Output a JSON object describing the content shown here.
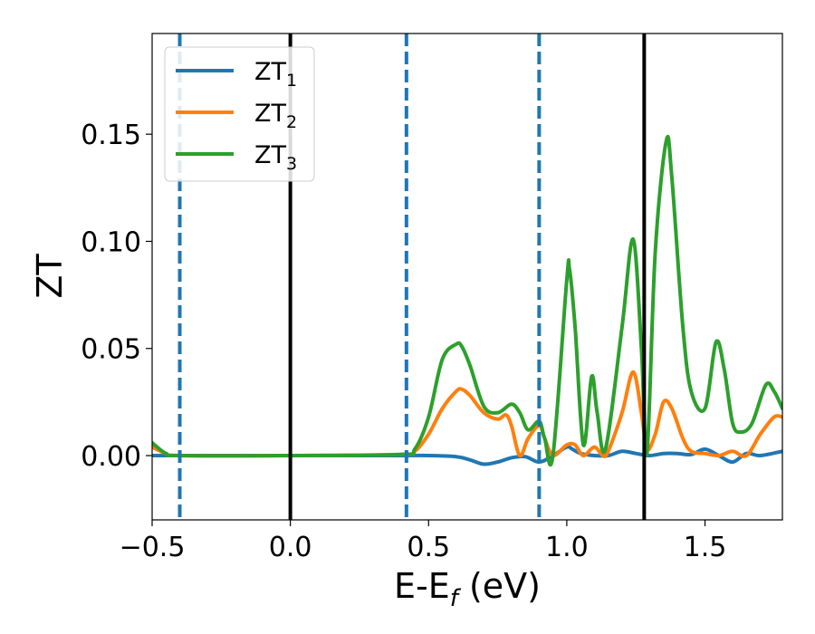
{
  "chart_data": {
    "type": "line",
    "xlabel": "E-E$_f$ (eV)",
    "xlabel_parts": {
      "main": "E-E",
      "sub": "f",
      "tail": " (eV)"
    },
    "ylabel": "ZT",
    "xlim": [
      -0.5,
      1.78
    ],
    "ylim": [
      -0.03,
      0.197
    ],
    "xticks": [
      -0.5,
      0.0,
      0.5,
      1.0,
      1.5
    ],
    "xtick_labels": [
      "−0.5",
      "0.0",
      "0.5",
      "1.0",
      "1.5"
    ],
    "yticks": [
      0.0,
      0.05,
      0.1,
      0.15
    ],
    "ytick_labels": [
      "0.00",
      "0.05",
      "0.10",
      "0.15"
    ],
    "grid": false,
    "legend_placement": "top-left",
    "vlines": [
      {
        "x": -0.4,
        "style": "dashed",
        "color": "#1f77b4"
      },
      {
        "x": 0.0,
        "style": "solid",
        "color": "#000000"
      },
      {
        "x": 0.42,
        "style": "dashed",
        "color": "#1f77b4"
      },
      {
        "x": 0.9,
        "style": "dashed",
        "color": "#1f77b4"
      },
      {
        "x": 1.28,
        "style": "solid",
        "color": "#000000"
      }
    ],
    "series": [
      {
        "name": "ZT1",
        "label_main": "ZT",
        "label_sub": "1",
        "color": "#1f77b4",
        "x": [
          -0.5,
          -0.4,
          0.0,
          0.4,
          0.5,
          0.6,
          0.65,
          0.7,
          0.75,
          0.8,
          0.85,
          0.9,
          0.95,
          1.0,
          1.02,
          1.05,
          1.1,
          1.15,
          1.2,
          1.25,
          1.3,
          1.35,
          1.4,
          1.45,
          1.5,
          1.55,
          1.6,
          1.65,
          1.7,
          1.78
        ],
        "y": [
          0.0,
          0.0,
          0.0,
          0.0,
          0.0,
          -0.0005,
          -0.002,
          -0.004,
          -0.003,
          -0.001,
          -0.0005,
          -0.003,
          0.0,
          0.004,
          0.003,
          0.001,
          0.0,
          0.0,
          0.002,
          0.001,
          0.0,
          0.001,
          0.001,
          0.0005,
          0.003,
          0.0,
          -0.003,
          0.001,
          0.0,
          0.002
        ]
      },
      {
        "name": "ZT2",
        "label_main": "ZT",
        "label_sub": "2",
        "color": "#ff7f0e",
        "x": [
          -0.5,
          -0.45,
          -0.4,
          0.0,
          0.4,
          0.45,
          0.5,
          0.55,
          0.6,
          0.62,
          0.65,
          0.7,
          0.75,
          0.78,
          0.8,
          0.83,
          0.86,
          0.9,
          0.92,
          0.95,
          1.0,
          1.03,
          1.06,
          1.1,
          1.13,
          1.15,
          1.2,
          1.24,
          1.27,
          1.29,
          1.32,
          1.35,
          1.38,
          1.42,
          1.45,
          1.5,
          1.55,
          1.6,
          1.65,
          1.7,
          1.75,
          1.78
        ],
        "y": [
          0.004,
          0.001,
          0.0,
          0.0,
          0.0005,
          0.002,
          0.01,
          0.022,
          0.03,
          0.031,
          0.028,
          0.02,
          0.017,
          0.019,
          0.014,
          0.0,
          0.008,
          0.014,
          0.008,
          0.0,
          0.005,
          0.005,
          0.0,
          0.004,
          0.0,
          0.002,
          0.02,
          0.039,
          0.02,
          0.003,
          0.01,
          0.025,
          0.022,
          0.008,
          0.002,
          0.001,
          0.0,
          0.002,
          0.0,
          0.01,
          0.018,
          0.018
        ]
      },
      {
        "name": "ZT3",
        "label_main": "ZT",
        "label_sub": "3",
        "color": "#2ca02c",
        "x": [
          -0.5,
          -0.45,
          -0.4,
          0.0,
          0.4,
          0.45,
          0.5,
          0.55,
          0.6,
          0.62,
          0.65,
          0.7,
          0.75,
          0.8,
          0.83,
          0.86,
          0.9,
          0.92,
          0.95,
          1.0,
          1.01,
          1.03,
          1.06,
          1.09,
          1.11,
          1.14,
          1.2,
          1.24,
          1.27,
          1.29,
          1.32,
          1.36,
          1.38,
          1.42,
          1.45,
          1.5,
          1.54,
          1.57,
          1.6,
          1.63,
          1.67,
          1.72,
          1.75,
          1.78
        ],
        "y": [
          0.006,
          0.001,
          0.0,
          0.0,
          0.0005,
          0.003,
          0.018,
          0.045,
          0.052,
          0.051,
          0.042,
          0.023,
          0.02,
          0.024,
          0.02,
          0.012,
          0.016,
          0.008,
          0.0,
          0.082,
          0.087,
          0.06,
          0.005,
          0.037,
          0.02,
          0.003,
          0.06,
          0.101,
          0.05,
          0.001,
          0.095,
          0.147,
          0.13,
          0.06,
          0.03,
          0.022,
          0.053,
          0.04,
          0.015,
          0.011,
          0.015,
          0.033,
          0.03,
          0.022
        ]
      }
    ]
  }
}
